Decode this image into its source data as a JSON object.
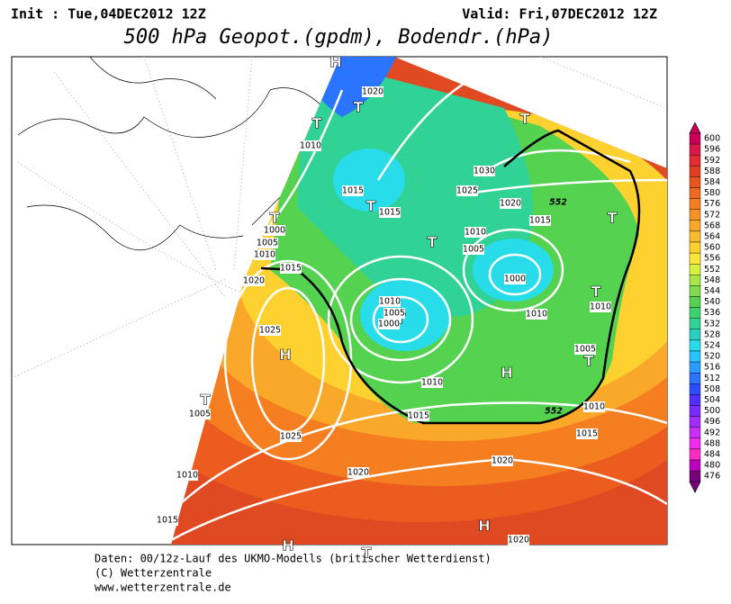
{
  "header": {
    "init": "Init : Tue,04DEC2012 12Z",
    "valid": "Valid: Fri,07DEC2012 12Z",
    "title": "500 hPa Geopot.(gpdm), Bodendr.(hPa)"
  },
  "map": {
    "centers": [
      "H",
      "T",
      "T",
      "T",
      "T",
      "T",
      "T",
      "H",
      "T",
      "H",
      "T",
      "T",
      "T",
      "T",
      "H",
      "H",
      "T"
    ],
    "isobar_labels": [
      "1020",
      "1010",
      "1015",
      "1015",
      "1000",
      "1005",
      "1010",
      "1015",
      "1020",
      "1025",
      "1030",
      "1025",
      "1020",
      "1015",
      "1010",
      "1005",
      "1000",
      "1010",
      "1005",
      "1000",
      "1010",
      "1010",
      "1005",
      "1010",
      "1025",
      "1010",
      "1015",
      "1015",
      "1020",
      "1020",
      "1020",
      "1010",
      "1015",
      "1005"
    ],
    "contour_labels": [
      "552",
      "552"
    ]
  },
  "legend": {
    "levels": [
      600,
      596,
      592,
      588,
      584,
      580,
      576,
      572,
      568,
      564,
      560,
      556,
      552,
      548,
      544,
      540,
      536,
      532,
      528,
      524,
      520,
      516,
      512,
      508,
      504,
      500,
      496,
      492,
      488,
      484,
      480,
      476
    ],
    "colors": [
      "#c8005a",
      "#d8174a",
      "#e02c34",
      "#e43e22",
      "#ea561e",
      "#ef6a1e",
      "#f47e20",
      "#f79226",
      "#f9a82a",
      "#fbbc2c",
      "#fdd230",
      "#fee638",
      "#d8f040",
      "#a8e648",
      "#80dc4c",
      "#54d250",
      "#3cd270",
      "#30d296",
      "#28d2be",
      "#28dcea",
      "#28c4ff",
      "#2a9cff",
      "#2a74ff",
      "#2c4cff",
      "#5030ff",
      "#7a2cff",
      "#a42cff",
      "#cc2cf8",
      "#f02cec",
      "#ff2cc4",
      "#c000c0",
      "#780078"
    ]
  },
  "footer": {
    "line1": "Daten: 00/12z-Lauf des UKMO-Modells (britischer Wetterdienst)",
    "line2": "(C) Wetterzentrale",
    "line3": "www.wetterzentrale.de"
  }
}
